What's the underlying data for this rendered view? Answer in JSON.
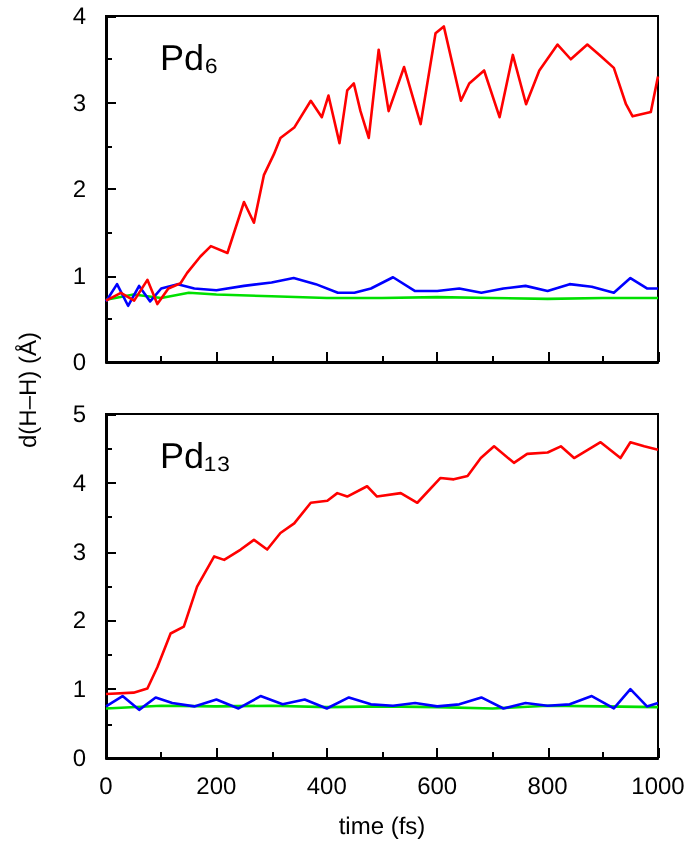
{
  "chart_data": [
    {
      "type": "line",
      "ylabel": "d(H–H) (Å)",
      "annotations": [
        "Pd₆"
      ],
      "xlim": [
        0,
        1000
      ],
      "xticks": [
        0,
        200,
        400,
        600,
        800,
        1000
      ],
      "ylim": [
        0,
        4
      ],
      "yticks": [
        0,
        1,
        2,
        3,
        4
      ],
      "tick_labels": "y",
      "grid": false,
      "marker": "none",
      "series": [
        {
          "color": "#00e000",
          "x": [
            0,
            50,
            100,
            150,
            200,
            300,
            400,
            500,
            600,
            700,
            800,
            900,
            1000
          ],
          "values": [
            0.72,
            0.78,
            0.74,
            0.8,
            0.78,
            0.76,
            0.74,
            0.74,
            0.75,
            0.74,
            0.73,
            0.74,
            0.74
          ]
        },
        {
          "color": "#0000ff",
          "x": [
            0,
            20,
            40,
            60,
            80,
            100,
            130,
            160,
            200,
            250,
            300,
            340,
            380,
            420,
            450,
            480,
            520,
            560,
            600,
            640,
            680,
            720,
            760,
            800,
            840,
            880,
            920,
            950,
            980,
            1000
          ],
          "values": [
            0.7,
            0.9,
            0.65,
            0.88,
            0.7,
            0.85,
            0.9,
            0.85,
            0.83,
            0.88,
            0.92,
            0.97,
            0.9,
            0.8,
            0.8,
            0.85,
            0.98,
            0.82,
            0.82,
            0.85,
            0.8,
            0.85,
            0.88,
            0.82,
            0.9,
            0.87,
            0.8,
            0.97,
            0.85,
            0.85
          ]
        },
        {
          "color": "#ff0000",
          "x": [
            0,
            27,
            51,
            75,
            93,
            113,
            135,
            147,
            171,
            190,
            220,
            250,
            268,
            286,
            304,
            316,
            341,
            371,
            391,
            403,
            423,
            437,
            449,
            461,
            476,
            494,
            512,
            540,
            570,
            597,
            612,
            643,
            658,
            685,
            713,
            737,
            761,
            785,
            818,
            842,
            872,
            894,
            920,
            942,
            954,
            987,
            1000
          ],
          "values": [
            0.71,
            0.8,
            0.71,
            0.95,
            0.67,
            0.85,
            0.91,
            1.03,
            1.22,
            1.34,
            1.26,
            1.85,
            1.61,
            2.16,
            2.4,
            2.59,
            2.71,
            3.02,
            2.83,
            3.08,
            2.53,
            3.14,
            3.22,
            2.9,
            2.59,
            3.61,
            2.9,
            3.41,
            2.75,
            3.8,
            3.88,
            3.02,
            3.22,
            3.37,
            2.83,
            3.55,
            2.98,
            3.37,
            3.67,
            3.5,
            3.67,
            3.55,
            3.4,
            2.98,
            2.84,
            2.89,
            3.3
          ]
        }
      ]
    },
    {
      "type": "line",
      "xlabel": "time (fs)",
      "annotations": [
        "Pd₁₃"
      ],
      "xlim": [
        0,
        1000
      ],
      "xticks": [
        0,
        200,
        400,
        600,
        800,
        1000
      ],
      "ylim": [
        0,
        5
      ],
      "yticks": [
        0,
        1,
        2,
        3,
        4,
        5
      ],
      "grid": false,
      "marker": "none",
      "series": [
        {
          "color": "#00e000",
          "x": [
            0,
            100,
            200,
            300,
            400,
            500,
            600,
            700,
            800,
            900,
            1000
          ],
          "values": [
            0.72,
            0.76,
            0.75,
            0.76,
            0.74,
            0.75,
            0.74,
            0.72,
            0.76,
            0.75,
            0.74
          ]
        },
        {
          "color": "#0000ff",
          "x": [
            0,
            30,
            60,
            90,
            120,
            160,
            200,
            240,
            280,
            320,
            360,
            400,
            440,
            480,
            520,
            560,
            600,
            640,
            680,
            720,
            760,
            800,
            840,
            880,
            920,
            950,
            980,
            1000
          ],
          "values": [
            0.75,
            0.9,
            0.7,
            0.88,
            0.8,
            0.75,
            0.85,
            0.72,
            0.9,
            0.78,
            0.85,
            0.72,
            0.88,
            0.78,
            0.76,
            0.8,
            0.75,
            0.78,
            0.88,
            0.72,
            0.8,
            0.76,
            0.78,
            0.9,
            0.72,
            1.0,
            0.75,
            0.8
          ]
        },
        {
          "color": "#ff0000",
          "x": [
            0,
            50,
            75,
            93,
            117,
            141,
            165,
            196,
            214,
            244,
            268,
            292,
            316,
            341,
            371,
            401,
            419,
            437,
            473,
            491,
            534,
            564,
            606,
            630,
            655,
            679,
            703,
            739,
            763,
            800,
            824,
            848,
            896,
            932,
            950,
            975,
            1000
          ],
          "values": [
            0.93,
            0.95,
            1.01,
            1.32,
            1.81,
            1.91,
            2.49,
            2.93,
            2.88,
            3.03,
            3.17,
            3.03,
            3.27,
            3.41,
            3.71,
            3.74,
            3.85,
            3.8,
            3.95,
            3.8,
            3.85,
            3.71,
            4.07,
            4.05,
            4.1,
            4.36,
            4.53,
            4.29,
            4.42,
            4.44,
            4.53,
            4.36,
            4.59,
            4.36,
            4.59,
            4.53,
            4.48
          ]
        }
      ]
    }
  ]
}
